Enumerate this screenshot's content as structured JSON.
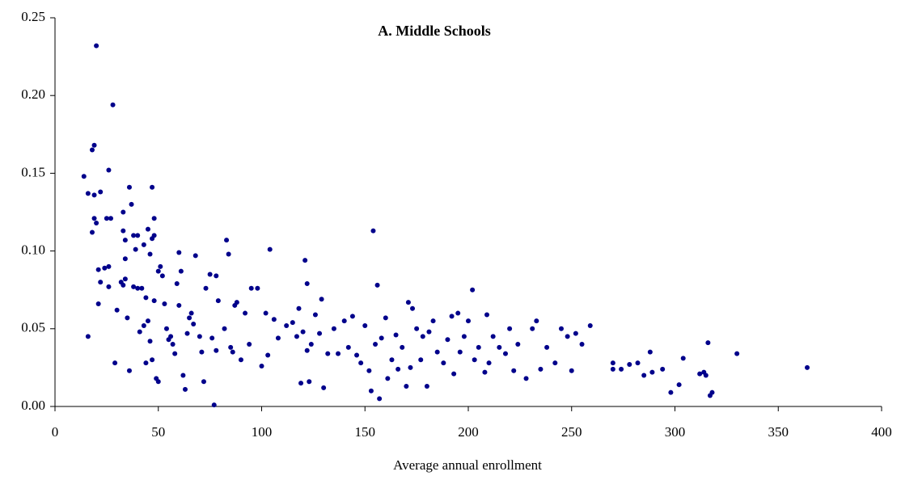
{
  "chart_data": {
    "type": "scatter",
    "title": "A. Middle Schools",
    "x_label": "Average annual enrollment",
    "color": "#00008b",
    "xlim": [
      0,
      400
    ],
    "xticks": [
      0,
      50,
      100,
      150,
      200,
      250,
      300,
      350,
      400
    ],
    "ylim": [
      0,
      0.25
    ],
    "yticks": [
      {
        "value": 0,
        "label": "0.00"
      },
      0.05,
      {
        "value": 0.1,
        "label": "0.10"
      },
      0.15,
      {
        "value": 0.2,
        "label": "0.20"
      },
      0.25
    ],
    "x": [
      20,
      28,
      19,
      18,
      14,
      26,
      16,
      19,
      22,
      19,
      20,
      18,
      25,
      27,
      16,
      36,
      47,
      37,
      33,
      48,
      21,
      24,
      22,
      21,
      26,
      26,
      30,
      29,
      32,
      33,
      34,
      35,
      34,
      33,
      34,
      38,
      40,
      39,
      43,
      45,
      47,
      46,
      48,
      36,
      38,
      40,
      42,
      44,
      45,
      43,
      41,
      44,
      46,
      47,
      48,
      49,
      50,
      50,
      51,
      52,
      53,
      54,
      55,
      56,
      57,
      58,
      59,
      60,
      60,
      61,
      62,
      63,
      64,
      65,
      66,
      67,
      68,
      70,
      71,
      72,
      73,
      75,
      76,
      77,
      78,
      78,
      79,
      82,
      83,
      84,
      85,
      86,
      87,
      88,
      90,
      92,
      94,
      95,
      98,
      100,
      102,
      103,
      104,
      106,
      108,
      112,
      115,
      117,
      118,
      119,
      120,
      121,
      122,
      122,
      123,
      124,
      126,
      128,
      129,
      130,
      132,
      135,
      137,
      140,
      142,
      144,
      146,
      148,
      150,
      152,
      153,
      154,
      155,
      156,
      157,
      158,
      160,
      161,
      163,
      165,
      166,
      168,
      170,
      171,
      172,
      173,
      175,
      177,
      178,
      180,
      181,
      183,
      185,
      188,
      190,
      192,
      193,
      195,
      196,
      198,
      200,
      202,
      203,
      205,
      208,
      209,
      210,
      212,
      215,
      218,
      220,
      222,
      224,
      228,
      231,
      233,
      235,
      238,
      242,
      245,
      248,
      250,
      252,
      255,
      259,
      270,
      270,
      274,
      278,
      282,
      285,
      288,
      289,
      294,
      298,
      302,
      304,
      312,
      314,
      315,
      316,
      317,
      318,
      330,
      364
    ],
    "values": [
      0.232,
      0.194,
      0.168,
      0.165,
      0.148,
      0.152,
      0.137,
      0.136,
      0.138,
      0.121,
      0.118,
      0.112,
      0.121,
      0.121,
      0.045,
      0.141,
      0.141,
      0.13,
      0.125,
      0.121,
      0.088,
      0.089,
      0.08,
      0.066,
      0.09,
      0.077,
      0.062,
      0.028,
      0.08,
      0.078,
      0.082,
      0.057,
      0.095,
      0.113,
      0.107,
      0.11,
      0.11,
      0.101,
      0.104,
      0.114,
      0.108,
      0.098,
      0.11,
      0.023,
      0.077,
      0.076,
      0.076,
      0.07,
      0.055,
      0.052,
      0.048,
      0.028,
      0.042,
      0.03,
      0.068,
      0.018,
      0.016,
      0.087,
      0.09,
      0.084,
      0.066,
      0.05,
      0.043,
      0.045,
      0.04,
      0.034,
      0.079,
      0.065,
      0.099,
      0.087,
      0.02,
      0.011,
      0.047,
      0.057,
      0.06,
      0.053,
      0.097,
      0.045,
      0.035,
      0.016,
      0.076,
      0.085,
      0.044,
      0.001,
      0.036,
      0.084,
      0.068,
      0.05,
      0.107,
      0.098,
      0.038,
      0.035,
      0.065,
      0.067,
      0.03,
      0.06,
      0.04,
      0.076,
      0.076,
      0.026,
      0.06,
      0.033,
      0.101,
      0.056,
      0.044,
      0.052,
      0.054,
      0.045,
      0.063,
      0.015,
      0.048,
      0.094,
      0.079,
      0.036,
      0.016,
      0.04,
      0.059,
      0.047,
      0.069,
      0.012,
      0.034,
      0.05,
      0.034,
      0.055,
      0.038,
      0.058,
      0.033,
      0.028,
      0.052,
      0.023,
      0.01,
      0.113,
      0.04,
      0.078,
      0.005,
      0.044,
      0.057,
      0.018,
      0.03,
      0.046,
      0.024,
      0.038,
      0.013,
      0.067,
      0.025,
      0.063,
      0.05,
      0.03,
      0.045,
      0.013,
      0.048,
      0.055,
      0.035,
      0.028,
      0.043,
      0.058,
      0.021,
      0.06,
      0.035,
      0.045,
      0.055,
      0.075,
      0.03,
      0.038,
      0.022,
      0.059,
      0.028,
      0.045,
      0.038,
      0.034,
      0.05,
      0.023,
      0.04,
      0.018,
      0.05,
      0.055,
      0.024,
      0.038,
      0.028,
      0.05,
      0.045,
      0.023,
      0.047,
      0.04,
      0.052,
      0.028,
      0.024,
      0.024,
      0.027,
      0.028,
      0.02,
      0.035,
      0.022,
      0.024,
      0.009,
      0.014,
      0.031,
      0.021,
      0.022,
      0.02,
      0.041,
      0.007,
      0.009,
      0.034,
      0.025
    ]
  }
}
